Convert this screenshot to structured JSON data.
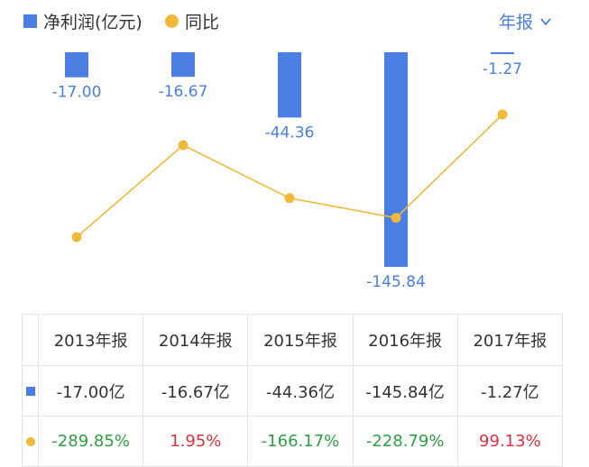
{
  "legend": {
    "bar_label": "净利润(亿元)",
    "line_label": "同比",
    "period_label": "年报",
    "period_icon": "chevron-down-icon"
  },
  "colors": {
    "bar": "#4a7ee3",
    "line": "#f0b93a",
    "positive": "#e0313e",
    "negative": "#2ea043",
    "accent": "#4a7ee3"
  },
  "chart_data": {
    "type": "bar",
    "categories": [
      "2013年报",
      "2014年报",
      "2015年报",
      "2016年报",
      "2017年报"
    ],
    "series": [
      {
        "name": "净利润(亿元)",
        "type": "bar",
        "values": [
          -17.0,
          -16.67,
          -44.36,
          -145.84,
          -1.27
        ],
        "labels": [
          "-17.00",
          "-16.67",
          "-44.36",
          "-145.84",
          "-1.27"
        ]
      },
      {
        "name": "同比",
        "type": "line",
        "values": [
          -289.85,
          1.95,
          -166.17,
          -228.79,
          99.13
        ]
      }
    ]
  },
  "table": {
    "headers": [
      "2013年报",
      "2014年报",
      "2015年报",
      "2016年报",
      "2017年报"
    ],
    "net_profit": [
      "-17.00亿",
      "-16.67亿",
      "-44.36亿",
      "-145.84亿",
      "-1.27亿"
    ],
    "yoy": [
      "-289.85%",
      "1.95%",
      "-166.17%",
      "-228.79%",
      "99.13%"
    ],
    "yoy_sign": [
      "neg",
      "pos",
      "neg",
      "neg",
      "pos"
    ]
  }
}
